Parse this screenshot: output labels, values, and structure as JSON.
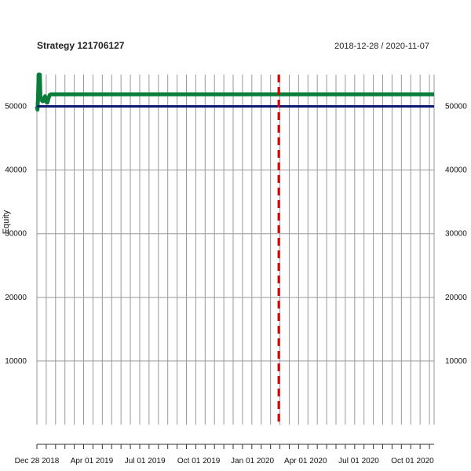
{
  "chart_data": {
    "type": "line",
    "title": "Strategy 121706127",
    "subtitle": "2018-12-28 / 2020-11-07",
    "xlabel": "",
    "ylabel": "Equity",
    "xlim": [
      "2018-12-28",
      "2020-11-07"
    ],
    "ylim": [
      0,
      55000
    ],
    "x_ticks": [
      {
        "date": "2018-12-28",
        "label": "Dec 28 2018"
      },
      {
        "date": "2019-04-01",
        "label": "Apr 01 2019"
      },
      {
        "date": "2019-07-01",
        "label": "Jul 01 2019"
      },
      {
        "date": "2019-10-01",
        "label": "Oct 01 2019"
      },
      {
        "date": "2020-01-01",
        "label": "Jan 01 2020"
      },
      {
        "date": "2020-04-01",
        "label": "Apr 01 2020"
      },
      {
        "date": "2020-07-01",
        "label": "Jul 01 2020"
      },
      {
        "date": "2020-10-01",
        "label": "Oct 01 2020"
      }
    ],
    "y_ticks": [
      10000,
      20000,
      30000,
      40000,
      50000
    ],
    "grid": true,
    "series": [
      {
        "color": "#0a7d3a",
        "points": [
          [
            "2018-12-28",
            50000
          ],
          [
            "2018-12-29",
            49500
          ],
          [
            "2018-12-30",
            51500
          ],
          [
            "2018-12-31",
            55000
          ],
          [
            "2019-01-01",
            52500
          ],
          [
            "2019-01-02",
            55000
          ],
          [
            "2019-01-03",
            51500
          ],
          [
            "2019-01-05",
            51000
          ],
          [
            "2019-01-07",
            50800
          ],
          [
            "2019-01-09",
            51200
          ],
          [
            "2019-01-11",
            51600
          ],
          [
            "2019-01-13",
            50700
          ],
          [
            "2019-01-15",
            50600
          ],
          [
            "2019-01-17",
            51300
          ],
          [
            "2019-01-19",
            51800
          ],
          [
            "2019-01-21",
            51900
          ],
          [
            "2020-11-07",
            51900
          ]
        ]
      },
      {
        "color": "#0a1a6e",
        "points": [
          [
            "2018-12-28",
            50000
          ],
          [
            "2020-11-07",
            50000
          ]
        ]
      }
    ],
    "vline": {
      "date": "2020-02-15",
      "color": "#e00000",
      "style": "dashed"
    }
  }
}
